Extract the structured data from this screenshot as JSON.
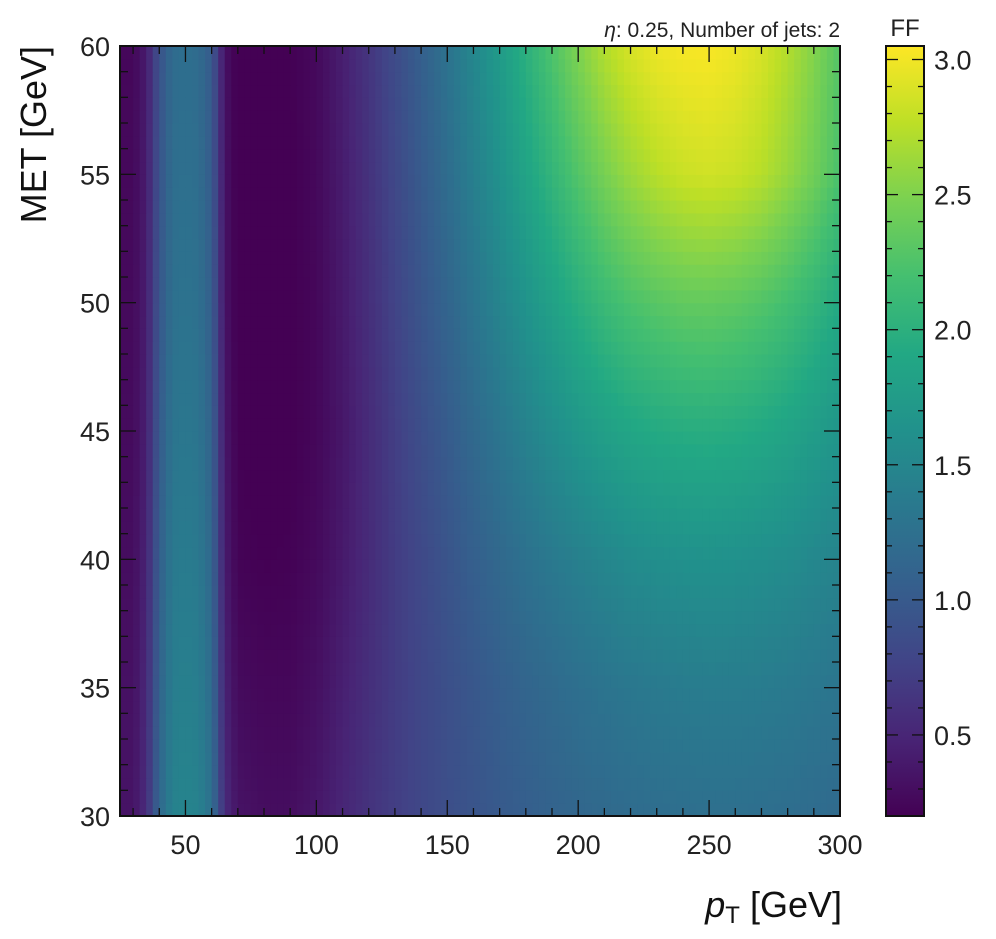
{
  "chart_data": {
    "type": "heatmap",
    "annotation_eta": "η",
    "annotation_rest": ": 0.25, Number of jets: 2",
    "xlabel_main": "p",
    "xlabel_sub": "T",
    "xlabel_unit": " [GeV]",
    "ylabel": "MET [GeV]",
    "colorbar_label": "FF",
    "colormap": "viridis",
    "xlim": [
      25,
      300
    ],
    "ylim": [
      30,
      60
    ],
    "zlim": [
      0.2,
      3.05
    ],
    "x_ticks": [
      50,
      100,
      150,
      200,
      250,
      300
    ],
    "x_tick_labels": [
      "50",
      "100",
      "150",
      "200",
      "250",
      "300"
    ],
    "y_ticks": [
      30,
      35,
      40,
      45,
      50,
      55,
      60
    ],
    "y_tick_labels": [
      "30",
      "35",
      "40",
      "45",
      "50",
      "55",
      "60"
    ],
    "colorbar_ticks": [
      0.5,
      1.0,
      1.5,
      2.0,
      2.5,
      3.0
    ],
    "colorbar_tick_labels": [
      "0.5",
      "1.0",
      "1.5",
      "2.0",
      "2.5",
      "3.0"
    ],
    "x": [
      25,
      30,
      35,
      40,
      45,
      50,
      55,
      60,
      65,
      70,
      80,
      90,
      100,
      110,
      120,
      130,
      140,
      150,
      160,
      170,
      180,
      190,
      200,
      210,
      220,
      230,
      240,
      250,
      260,
      270,
      280,
      290,
      300
    ],
    "y": [
      30,
      35,
      40,
      45,
      50,
      55,
      60
    ],
    "z": [
      [
        0.35,
        0.35,
        0.55,
        1.15,
        1.45,
        1.48,
        1.45,
        1.25,
        0.55,
        0.35,
        0.3,
        0.3,
        0.38,
        0.5,
        0.62,
        0.72,
        0.8,
        0.88,
        0.94,
        1.0,
        1.05,
        1.1,
        1.14,
        1.17,
        1.2,
        1.22,
        1.23,
        1.24,
        1.24,
        1.23,
        1.22,
        1.2,
        1.18
      ],
      [
        0.33,
        0.33,
        0.52,
        1.1,
        1.4,
        1.43,
        1.4,
        1.2,
        0.48,
        0.28,
        0.25,
        0.25,
        0.32,
        0.45,
        0.58,
        0.7,
        0.8,
        0.89,
        0.97,
        1.05,
        1.12,
        1.18,
        1.24,
        1.29,
        1.33,
        1.36,
        1.38,
        1.39,
        1.39,
        1.38,
        1.36,
        1.33,
        1.3
      ],
      [
        0.3,
        0.3,
        0.48,
        1.05,
        1.35,
        1.38,
        1.35,
        1.15,
        0.42,
        0.22,
        0.2,
        0.21,
        0.27,
        0.4,
        0.55,
        0.7,
        0.82,
        0.94,
        1.06,
        1.16,
        1.26,
        1.35,
        1.43,
        1.5,
        1.56,
        1.6,
        1.62,
        1.63,
        1.62,
        1.6,
        1.57,
        1.52,
        1.47
      ],
      [
        0.28,
        0.28,
        0.45,
        1.0,
        1.3,
        1.33,
        1.3,
        1.1,
        0.38,
        0.2,
        0.18,
        0.19,
        0.25,
        0.38,
        0.55,
        0.72,
        0.88,
        1.02,
        1.17,
        1.31,
        1.45,
        1.58,
        1.7,
        1.8,
        1.88,
        1.93,
        1.96,
        1.97,
        1.95,
        1.91,
        1.85,
        1.77,
        1.68
      ],
      [
        0.27,
        0.27,
        0.43,
        0.96,
        1.25,
        1.28,
        1.25,
        1.05,
        0.35,
        0.18,
        0.17,
        0.19,
        0.25,
        0.4,
        0.58,
        0.77,
        0.95,
        1.12,
        1.3,
        1.48,
        1.65,
        1.82,
        1.98,
        2.12,
        2.23,
        2.3,
        2.35,
        2.36,
        2.33,
        2.27,
        2.18,
        2.06,
        1.92
      ],
      [
        0.26,
        0.26,
        0.42,
        0.93,
        1.22,
        1.25,
        1.22,
        1.02,
        0.34,
        0.18,
        0.17,
        0.19,
        0.26,
        0.42,
        0.61,
        0.81,
        1.01,
        1.21,
        1.42,
        1.63,
        1.85,
        2.06,
        2.27,
        2.46,
        2.62,
        2.74,
        2.82,
        2.85,
        2.82,
        2.74,
        2.6,
        2.43,
        2.22
      ],
      [
        0.25,
        0.25,
        0.41,
        0.91,
        1.2,
        1.23,
        1.2,
        1.0,
        0.33,
        0.18,
        0.17,
        0.2,
        0.27,
        0.44,
        0.64,
        0.85,
        1.06,
        1.28,
        1.51,
        1.75,
        2.0,
        2.25,
        2.5,
        2.72,
        2.88,
        2.98,
        3.02,
        3.03,
        2.98,
        2.88,
        2.72,
        2.52,
        2.28
      ]
    ]
  }
}
